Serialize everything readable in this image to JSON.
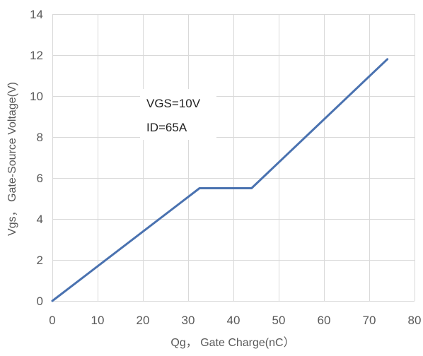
{
  "chart_data": {
    "type": "line",
    "title": "",
    "xlabel": "Qg， Gate Charge(nC）",
    "ylabel": "Vgs， Gate-Source Voltage(V)",
    "xlim": [
      0,
      80
    ],
    "ylim": [
      0,
      14
    ],
    "xticks": [
      0,
      10,
      20,
      30,
      40,
      50,
      60,
      70,
      80
    ],
    "yticks": [
      0,
      2,
      4,
      6,
      8,
      10,
      12,
      14
    ],
    "grid": true,
    "legend": "none",
    "series": [
      {
        "color": "#4a72b0",
        "x": [
          0,
          32.5,
          44,
          74
        ],
        "y": [
          0,
          5.5,
          5.5,
          11.8
        ]
      }
    ],
    "annotations": [
      "VGS=10V",
      "ID=65A"
    ]
  }
}
